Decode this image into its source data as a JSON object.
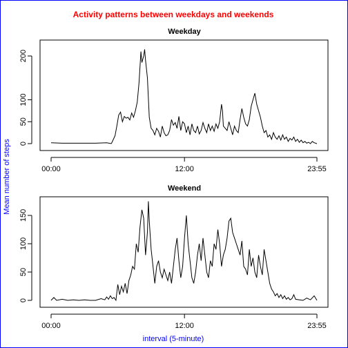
{
  "title": "Activity patterns between weekdays and weekends",
  "ylabel": "Mean number of steps",
  "xlabel": "interval (5-minute)",
  "colors": {
    "title": "#ff0000",
    "labels": "#0000ff",
    "line": "#000000",
    "border": "#0000ff"
  },
  "chart_data": [
    {
      "type": "line",
      "title": "Weekday",
      "x_unit": "minutes since midnight",
      "xlim": [
        0,
        1435
      ],
      "ylim": [
        0,
        230
      ],
      "x_ticks": [
        {
          "value": 0,
          "label": "00:00"
        },
        {
          "value": 720,
          "label": "12:00"
        },
        {
          "value": 1435,
          "label": "23:55"
        }
      ],
      "y_ticks": [
        {
          "value": 0,
          "label": "0"
        },
        {
          "value": 50,
          "label": "50"
        },
        {
          "value": 100,
          "label": "100"
        },
        {
          "value": 200,
          "label": "200"
        }
      ],
      "points": [
        [
          0,
          2
        ],
        [
          60,
          1
        ],
        [
          120,
          1
        ],
        [
          180,
          1
        ],
        [
          240,
          1
        ],
        [
          300,
          2
        ],
        [
          325,
          0
        ],
        [
          330,
          4
        ],
        [
          345,
          18
        ],
        [
          355,
          40
        ],
        [
          365,
          65
        ],
        [
          375,
          72
        ],
        [
          385,
          50
        ],
        [
          395,
          62
        ],
        [
          405,
          58
        ],
        [
          415,
          60
        ],
        [
          425,
          54
        ],
        [
          435,
          70
        ],
        [
          445,
          60
        ],
        [
          455,
          75
        ],
        [
          465,
          95
        ],
        [
          475,
          140
        ],
        [
          485,
          210
        ],
        [
          490,
          185
        ],
        [
          500,
          200
        ],
        [
          505,
          215
        ],
        [
          510,
          190
        ],
        [
          520,
          150
        ],
        [
          530,
          60
        ],
        [
          540,
          35
        ],
        [
          550,
          30
        ],
        [
          560,
          20
        ],
        [
          570,
          35
        ],
        [
          580,
          28
        ],
        [
          590,
          15
        ],
        [
          600,
          40
        ],
        [
          610,
          25
        ],
        [
          620,
          18
        ],
        [
          630,
          20
        ],
        [
          640,
          30
        ],
        [
          650,
          55
        ],
        [
          660,
          42
        ],
        [
          670,
          48
        ],
        [
          680,
          35
        ],
        [
          690,
          62
        ],
        [
          700,
          30
        ],
        [
          710,
          50
        ],
        [
          720,
          45
        ],
        [
          730,
          25
        ],
        [
          740,
          40
        ],
        [
          750,
          20
        ],
        [
          760,
          45
        ],
        [
          770,
          30
        ],
        [
          780,
          25
        ],
        [
          790,
          40
        ],
        [
          800,
          22
        ],
        [
          810,
          30
        ],
        [
          820,
          48
        ],
        [
          830,
          35
        ],
        [
          840,
          25
        ],
        [
          850,
          45
        ],
        [
          860,
          30
        ],
        [
          870,
          40
        ],
        [
          880,
          28
        ],
        [
          890,
          45
        ],
        [
          900,
          35
        ],
        [
          910,
          50
        ],
        [
          920,
          90
        ],
        [
          925,
          75
        ],
        [
          930,
          40
        ],
        [
          940,
          35
        ],
        [
          950,
          30
        ],
        [
          960,
          50
        ],
        [
          970,
          35
        ],
        [
          980,
          20
        ],
        [
          990,
          40
        ],
        [
          1000,
          30
        ],
        [
          1010,
          25
        ],
        [
          1020,
          55
        ],
        [
          1030,
          80
        ],
        [
          1040,
          60
        ],
        [
          1050,
          45
        ],
        [
          1060,
          40
        ],
        [
          1070,
          55
        ],
        [
          1080,
          85
        ],
        [
          1090,
          100
        ],
        [
          1100,
          115
        ],
        [
          1110,
          90
        ],
        [
          1120,
          75
        ],
        [
          1130,
          60
        ],
        [
          1140,
          40
        ],
        [
          1150,
          25
        ],
        [
          1160,
          30
        ],
        [
          1170,
          15
        ],
        [
          1180,
          20
        ],
        [
          1190,
          10
        ],
        [
          1200,
          25
        ],
        [
          1210,
          15
        ],
        [
          1220,
          10
        ],
        [
          1230,
          18
        ],
        [
          1240,
          8
        ],
        [
          1250,
          20
        ],
        [
          1260,
          10
        ],
        [
          1270,
          15
        ],
        [
          1280,
          5
        ],
        [
          1290,
          12
        ],
        [
          1300,
          8
        ],
        [
          1310,
          15
        ],
        [
          1320,
          5
        ],
        [
          1330,
          10
        ],
        [
          1340,
          3
        ],
        [
          1350,
          8
        ],
        [
          1360,
          2
        ],
        [
          1370,
          5
        ],
        [
          1380,
          1
        ],
        [
          1390,
          3
        ],
        [
          1400,
          0
        ],
        [
          1410,
          5
        ],
        [
          1420,
          2
        ],
        [
          1435,
          0
        ]
      ]
    },
    {
      "type": "line",
      "title": "Weekend",
      "x_unit": "minutes since midnight",
      "xlim": [
        0,
        1435
      ],
      "ylim": [
        0,
        178
      ],
      "x_ticks": [
        {
          "value": 0,
          "label": "00:00"
        },
        {
          "value": 720,
          "label": "12:00"
        },
        {
          "value": 1435,
          "label": "23:55"
        }
      ],
      "y_ticks": [
        {
          "value": 0,
          "label": "0"
        },
        {
          "value": 50,
          "label": "50"
        },
        {
          "value": 100,
          "label": "100"
        },
        {
          "value": 150,
          "label": "150"
        }
      ],
      "points": [
        [
          0,
          0
        ],
        [
          15,
          5
        ],
        [
          30,
          0
        ],
        [
          60,
          2
        ],
        [
          90,
          0
        ],
        [
          120,
          1
        ],
        [
          150,
          0
        ],
        [
          180,
          1
        ],
        [
          210,
          0
        ],
        [
          240,
          0
        ],
        [
          270,
          3
        ],
        [
          290,
          1
        ],
        [
          300,
          6
        ],
        [
          310,
          2
        ],
        [
          320,
          8
        ],
        [
          330,
          3
        ],
        [
          340,
          5
        ],
        [
          350,
          0
        ],
        [
          360,
          28
        ],
        [
          370,
          10
        ],
        [
          380,
          25
        ],
        [
          390,
          15
        ],
        [
          400,
          30
        ],
        [
          410,
          12
        ],
        [
          420,
          35
        ],
        [
          430,
          45
        ],
        [
          440,
          60
        ],
        [
          450,
          55
        ],
        [
          460,
          100
        ],
        [
          470,
          85
        ],
        [
          480,
          130
        ],
        [
          490,
          160
        ],
        [
          500,
          145
        ],
        [
          510,
          80
        ],
        [
          520,
          120
        ],
        [
          525,
          175
        ],
        [
          530,
          140
        ],
        [
          540,
          90
        ],
        [
          550,
          60
        ],
        [
          560,
          30
        ],
        [
          570,
          60
        ],
        [
          580,
          70
        ],
        [
          590,
          50
        ],
        [
          600,
          40
        ],
        [
          610,
          55
        ],
        [
          620,
          45
        ],
        [
          630,
          35
        ],
        [
          640,
          50
        ],
        [
          650,
          30
        ],
        [
          660,
          60
        ],
        [
          670,
          90
        ],
        [
          680,
          110
        ],
        [
          690,
          70
        ],
        [
          700,
          40
        ],
        [
          710,
          60
        ],
        [
          720,
          110
        ],
        [
          730,
          150
        ],
        [
          740,
          100
        ],
        [
          750,
          70
        ],
        [
          760,
          40
        ],
        [
          770,
          30
        ],
        [
          780,
          50
        ],
        [
          790,
          80
        ],
        [
          800,
          100
        ],
        [
          810,
          70
        ],
        [
          820,
          110
        ],
        [
          830,
          80
        ],
        [
          840,
          50
        ],
        [
          850,
          40
        ],
        [
          860,
          70
        ],
        [
          870,
          60
        ],
        [
          880,
          100
        ],
        [
          890,
          90
        ],
        [
          900,
          125
        ],
        [
          910,
          100
        ],
        [
          920,
          60
        ],
        [
          930,
          80
        ],
        [
          940,
          90
        ],
        [
          950,
          110
        ],
        [
          960,
          140
        ],
        [
          970,
          145
        ],
        [
          980,
          120
        ],
        [
          990,
          110
        ],
        [
          1000,
          100
        ],
        [
          1010,
          90
        ],
        [
          1020,
          80
        ],
        [
          1030,
          105
        ],
        [
          1040,
          60
        ],
        [
          1050,
          55
        ],
        [
          1060,
          45
        ],
        [
          1070,
          90
        ],
        [
          1080,
          60
        ],
        [
          1090,
          75
        ],
        [
          1100,
          50
        ],
        [
          1110,
          40
        ],
        [
          1120,
          80
        ],
        [
          1130,
          60
        ],
        [
          1140,
          45
        ],
        [
          1150,
          90
        ],
        [
          1160,
          70
        ],
        [
          1170,
          50
        ],
        [
          1180,
          30
        ],
        [
          1190,
          20
        ],
        [
          1200,
          15
        ],
        [
          1210,
          8
        ],
        [
          1220,
          12
        ],
        [
          1230,
          5
        ],
        [
          1240,
          10
        ],
        [
          1250,
          3
        ],
        [
          1260,
          8
        ],
        [
          1270,
          2
        ],
        [
          1280,
          5
        ],
        [
          1290,
          1
        ],
        [
          1300,
          3
        ],
        [
          1310,
          10
        ],
        [
          1320,
          2
        ],
        [
          1340,
          1
        ],
        [
          1360,
          0
        ],
        [
          1380,
          4
        ],
        [
          1400,
          1
        ],
        [
          1420,
          8
        ],
        [
          1435,
          0
        ]
      ]
    }
  ]
}
